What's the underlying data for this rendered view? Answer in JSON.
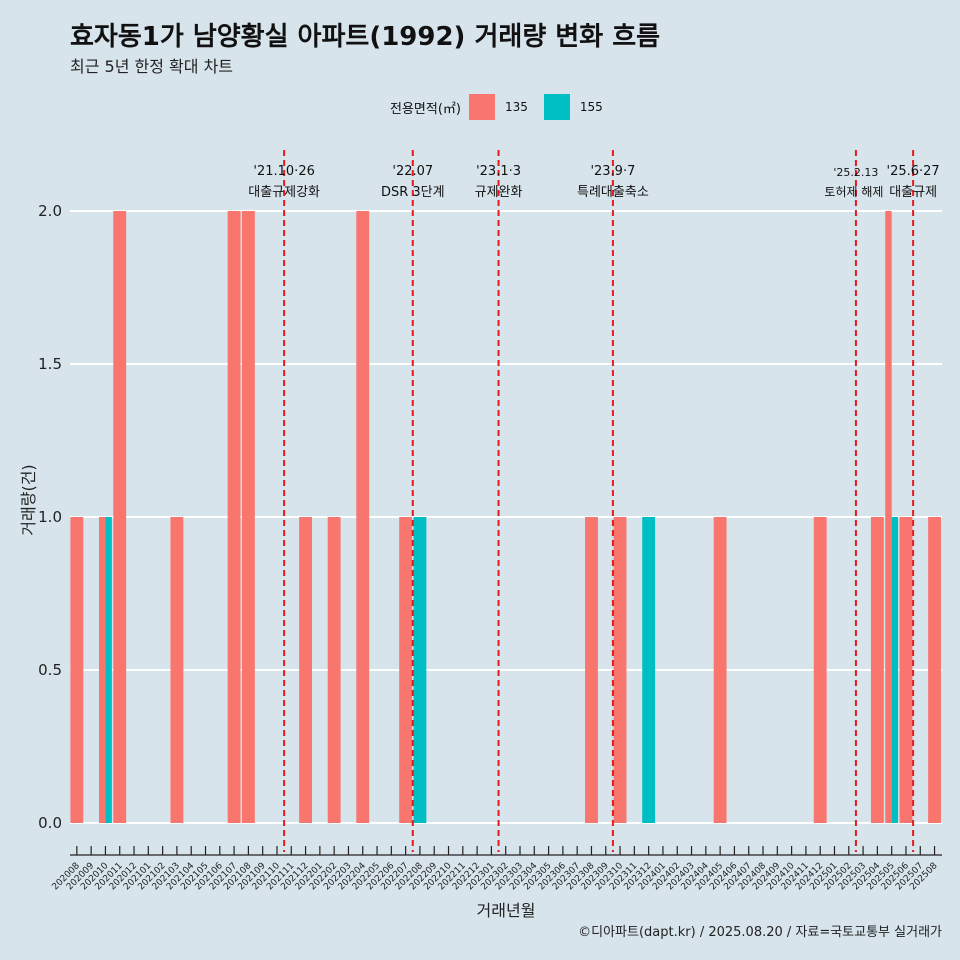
{
  "title": "효자동1가 남양황실 아파트(1992) 거래량 변화 흐름",
  "subtitle": "최근 5년 한정 확대 차트",
  "caption": "©디아파트(dapt.kr) / 2025.08.20 / 자료=국토교통부 실거래가",
  "colors": {
    "background": "#d7e4ec",
    "s135": "#f8766d",
    "s155": "#00bfc4",
    "vline": "#e41a1c",
    "grid": "#ffffff"
  },
  "chart_data": {
    "type": "bar",
    "title": "효자동1가 남양황실 아파트(1992) 거래량 변화 흐름",
    "subtitle": "최근 5년 한정 확대 차트",
    "xlabel": "거래년월",
    "ylabel": "거래량(건)",
    "ylim": [
      0,
      2.0
    ],
    "yticks": [
      "0.0",
      "0.5",
      "1.0",
      "1.5",
      "2.0"
    ],
    "grid": true,
    "legend": {
      "title": "전용면적(㎡)",
      "position": "top"
    },
    "categories": [
      "202008",
      "202009",
      "202010",
      "202011",
      "202012",
      "202101",
      "202102",
      "202103",
      "202104",
      "202105",
      "202106",
      "202107",
      "202108",
      "202109",
      "202110",
      "202111",
      "202112",
      "202201",
      "202202",
      "202203",
      "202204",
      "202205",
      "202206",
      "202207",
      "202208",
      "202209",
      "202210",
      "202211",
      "202212",
      "202301",
      "202302",
      "202303",
      "202304",
      "202305",
      "202306",
      "202307",
      "202308",
      "202309",
      "202310",
      "202311",
      "202312",
      "202401",
      "202402",
      "202403",
      "202404",
      "202405",
      "202406",
      "202407",
      "202408",
      "202409",
      "202410",
      "202411",
      "202412",
      "202501",
      "202502",
      "202503",
      "202504",
      "202505",
      "202506",
      "202507",
      "202508"
    ],
    "series": [
      {
        "name": "135",
        "values": [
          1,
          0,
          1,
          2,
          0,
          0,
          0,
          1,
          0,
          0,
          0,
          2,
          2,
          0,
          0,
          0,
          1,
          0,
          1,
          0,
          2,
          0,
          0,
          1,
          0,
          0,
          0,
          0,
          0,
          0,
          0,
          0,
          0,
          0,
          0,
          0,
          1,
          0,
          1,
          0,
          0,
          0,
          0,
          0,
          0,
          1,
          0,
          0,
          0,
          0,
          0,
          0,
          1,
          0,
          0,
          0,
          1,
          2,
          1,
          0,
          1
        ]
      },
      {
        "name": "155",
        "values": [
          0,
          0,
          1,
          0,
          0,
          0,
          0,
          0,
          0,
          0,
          0,
          0,
          0,
          0,
          0,
          0,
          0,
          0,
          0,
          0,
          0,
          0,
          0,
          0,
          1,
          0,
          0,
          0,
          0,
          0,
          0,
          0,
          0,
          0,
          0,
          0,
          0,
          0,
          0,
          0,
          1,
          0,
          0,
          0,
          0,
          0,
          0,
          0,
          0,
          0,
          0,
          0,
          0,
          0,
          0,
          0,
          0,
          1,
          0,
          0,
          0
        ]
      }
    ],
    "annotations": [
      {
        "x": "202110",
        "date": "'21.10·26",
        "label": "대출규제강화"
      },
      {
        "x": "202207",
        "date": "'22.07",
        "label": "DSR 3단계"
      },
      {
        "x": "202301",
        "date": "'23.1·3",
        "label": "규제완화"
      },
      {
        "x": "202309",
        "date": "'23.9·7",
        "label": "특례대출축소"
      },
      {
        "x": "202502",
        "date": "'25.2.13",
        "label": "토허제 해제"
      },
      {
        "x": "202506",
        "date": "'25.6·27",
        "label": "대출규제"
      }
    ]
  }
}
